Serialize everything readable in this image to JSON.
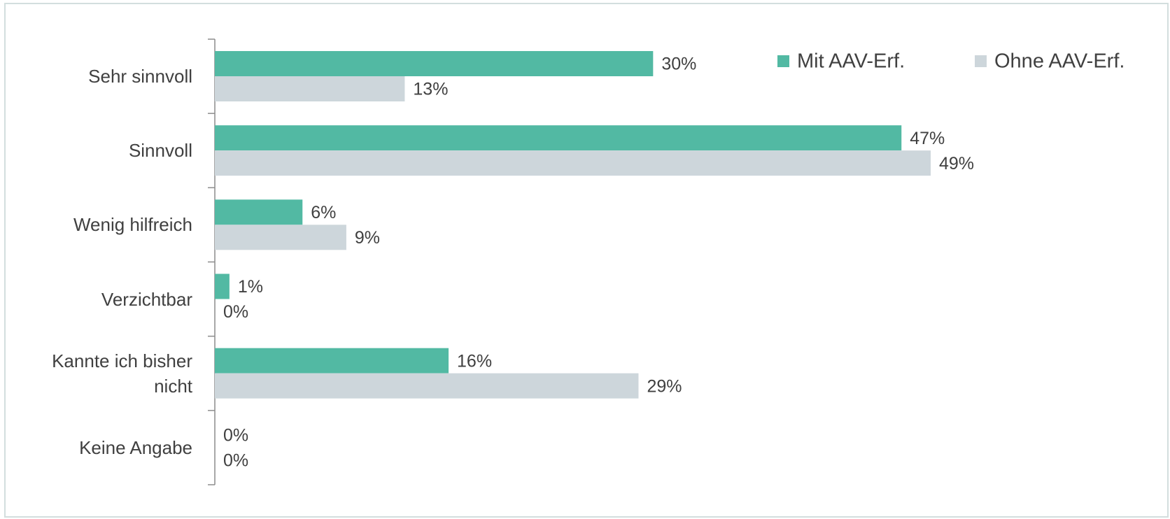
{
  "chart_data": {
    "type": "bar",
    "orientation": "horizontal",
    "categories": [
      "Sehr sinnvoll",
      "Sinnvoll",
      "Wenig hilfreich",
      "Verzichtbar",
      "Kannte ich bisher nicht",
      "Keine Angabe"
    ],
    "series": [
      {
        "name": "Mit AAV-Erf.",
        "color": "#52b9a3",
        "values": [
          30,
          47,
          6,
          1,
          16,
          0
        ],
        "value_labels": [
          "30%",
          "47%",
          "6%",
          "1%",
          "16%",
          "0%"
        ]
      },
      {
        "name": "Ohne AAV-Erf.",
        "color": "#cdd6db",
        "values": [
          13,
          49,
          9,
          0,
          29,
          0
        ],
        "value_labels": [
          "13%",
          "49%",
          "9%",
          "0%",
          "29%",
          "0%"
        ]
      }
    ],
    "legend": "top-right"
  }
}
